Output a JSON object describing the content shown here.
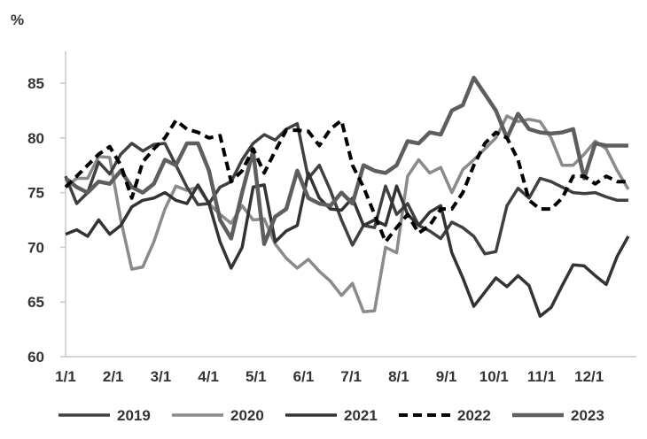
{
  "chart_data": {
    "type": "line",
    "title": "",
    "ylabel": "%",
    "xlabel": "",
    "ylim": [
      60,
      87
    ],
    "yticks": [
      "60",
      "65",
      "70",
      "75",
      "80",
      "85"
    ],
    "xticks": [
      "1/1",
      "2/1",
      "3/1",
      "4/1",
      "5/1",
      "6/1",
      "7/1",
      "8/1",
      "9/1",
      "10/1",
      "11/1",
      "12/1"
    ],
    "grid": false,
    "legend_position": "bottom",
    "x_unit": "week of year (0-51)",
    "series": [
      {
        "name": "2019",
        "color": "#404040",
        "style": "solid",
        "values": [
          76.5,
          74,
          75,
          77.8,
          76.7,
          78.5,
          79.5,
          78.8,
          79.4,
          79.5,
          77.5,
          75.5,
          73.9,
          74,
          75.5,
          76,
          78,
          79.5,
          80.3,
          79.8,
          80.8,
          81.3,
          76.3,
          77.5,
          75.2,
          72.5,
          70.2,
          72,
          71.8,
          75.6,
          73,
          74,
          72,
          71.5,
          70.8,
          72.3,
          71.8,
          71,
          69.4,
          69.6,
          73.8,
          75.4,
          74.5,
          76.3,
          76,
          75.5,
          75,
          74.9,
          75,
          74.6,
          74.3,
          74.3
        ]
      },
      {
        "name": "2020",
        "color": "#8a8a8a",
        "style": "solid",
        "values": [
          75.5,
          76.3,
          76.3,
          78.3,
          78.2,
          72.5,
          68,
          68.2,
          70.5,
          73.5,
          75.6,
          75.2,
          75.5,
          74,
          73,
          72.2,
          73.8,
          72.5,
          72.6,
          70.3,
          69,
          68.1,
          68.9,
          67.8,
          66.9,
          65.6,
          66.7,
          64.1,
          64.2,
          70,
          69.5,
          76.5,
          78,
          76.8,
          77.3,
          75,
          77.1,
          78,
          79,
          80,
          82,
          81.5,
          81.7,
          81.5,
          80,
          77.5,
          77.5,
          78.5,
          79.7,
          79,
          77,
          75.3
        ]
      },
      {
        "name": "2021",
        "color": "#333333",
        "style": "solid",
        "values": [
          71.2,
          71.6,
          71,
          72.5,
          71.2,
          72,
          73.7,
          74.3,
          74.5,
          75,
          74.3,
          74,
          75.7,
          74,
          70.5,
          68.1,
          70,
          75.5,
          75.7,
          70.5,
          71.5,
          72,
          76.8,
          74.5,
          73.5,
          73.4,
          74.5,
          72,
          72.5,
          72,
          75.6,
          73,
          72,
          73.2,
          73.8,
          69.5,
          67.2,
          64.6,
          65.9,
          67.2,
          66.4,
          67.4,
          66.5,
          63.7,
          64.5,
          66.5,
          68.4,
          68.3,
          67.4,
          66.6,
          69.2,
          71
        ]
      },
      {
        "name": "2022",
        "color": "#000000",
        "style": "dashed",
        "values": [
          75.5,
          76.5,
          77.5,
          78.5,
          79.2,
          77.5,
          74.5,
          77.8,
          79,
          80,
          81.6,
          80.8,
          80.5,
          80,
          80.2,
          76,
          77,
          79,
          76.8,
          78.8,
          80.7,
          80.7,
          80.6,
          79.3,
          80.8,
          81.6,
          77.5,
          75.5,
          73,
          70.5,
          71.8,
          73,
          71.3,
          72,
          73.5,
          73.5,
          75,
          77.5,
          79.5,
          80.5,
          80,
          78,
          74.3,
          73.5,
          73.5,
          74.5,
          76.5,
          76.5,
          75.8,
          76.5,
          76,
          76
        ]
      },
      {
        "name": "2023",
        "color": "#5e5e5e",
        "style": "solid-thick",
        "values": [
          76.3,
          75.5,
          75,
          76,
          75.8,
          77,
          75.5,
          75,
          75.8,
          78,
          77.5,
          79.5,
          79.5,
          77,
          72.5,
          70.8,
          75,
          78.8,
          70.3,
          72.8,
          73.5,
          77,
          74.5,
          74,
          73.8,
          75,
          74,
          77.5,
          77,
          76.8,
          77.5,
          79.7,
          79.5,
          80.5,
          80.3,
          82.5,
          83,
          85.5,
          84,
          82.5,
          80,
          82.2,
          80.8,
          80.5,
          80.4,
          80.5,
          80.8,
          76.3,
          79.5,
          79.3,
          79.3,
          79.3
        ]
      }
    ]
  }
}
